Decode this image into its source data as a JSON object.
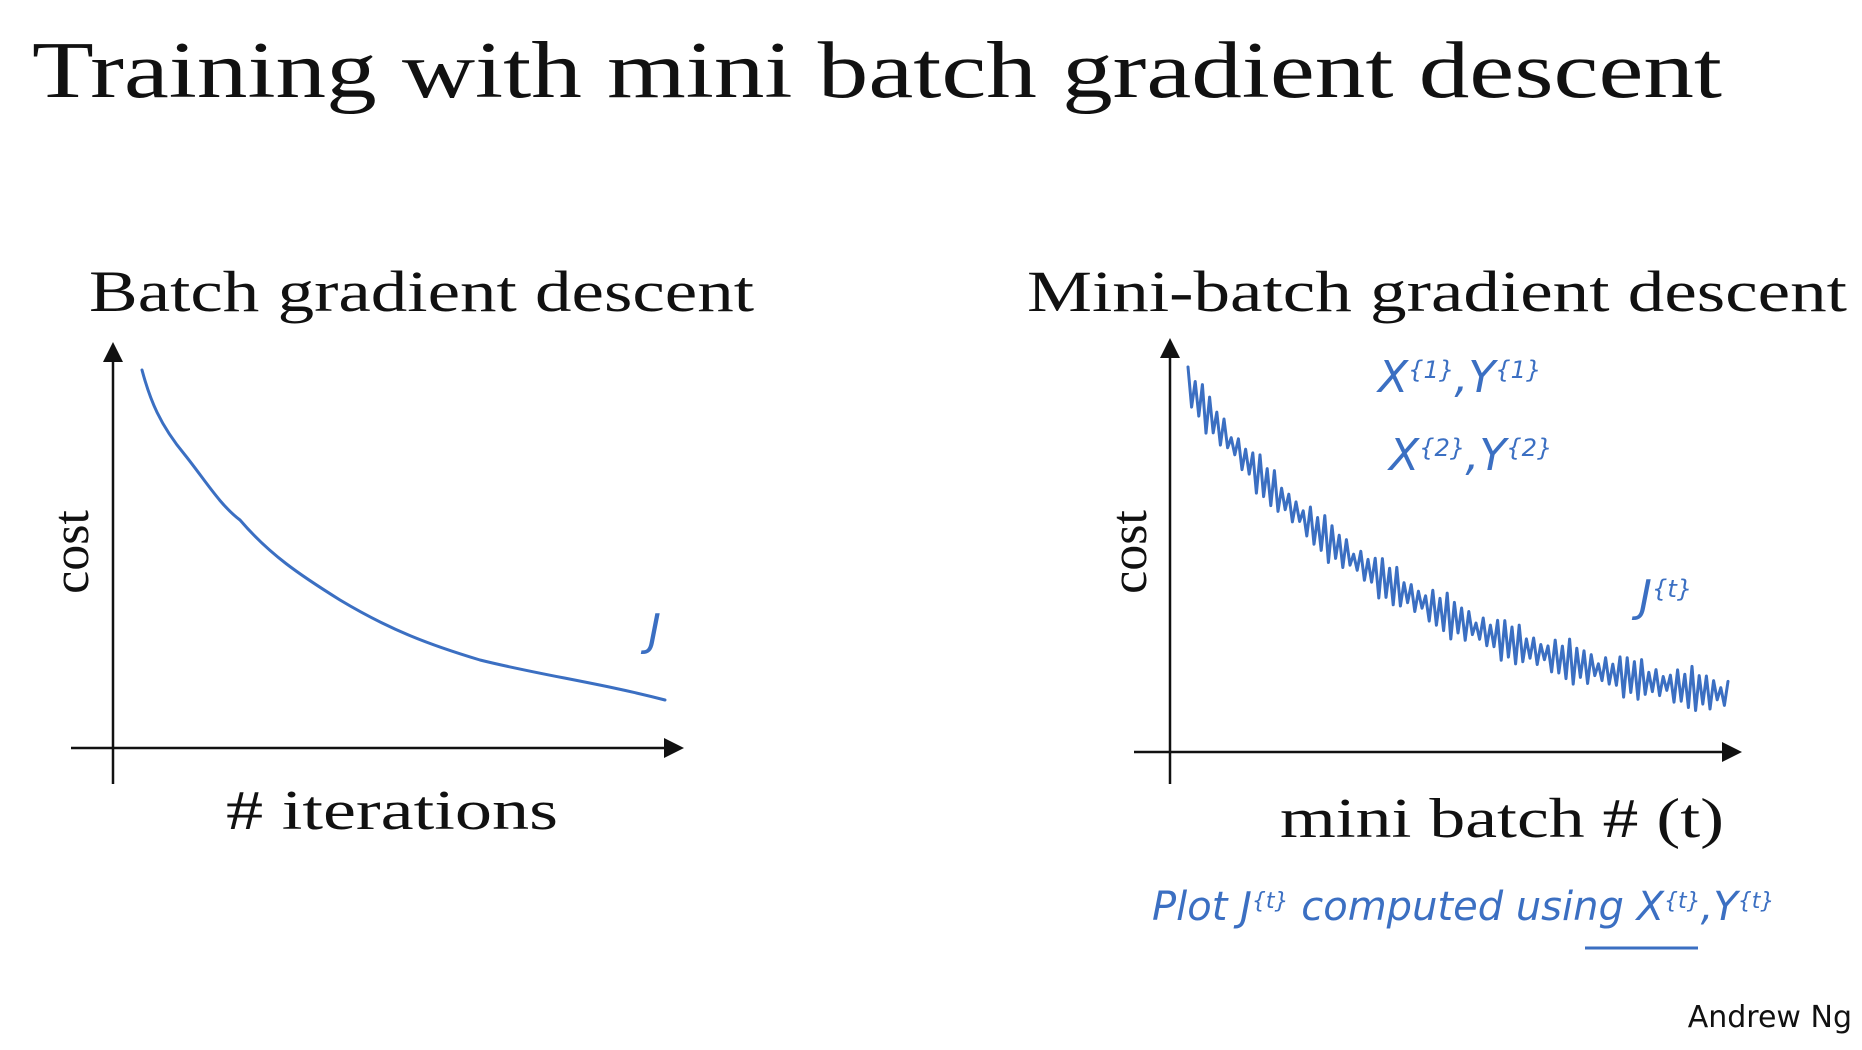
{
  "title": "Training with mini batch gradient descent",
  "left_chart": {
    "title": "Batch gradient descent",
    "y_label": "cost",
    "x_label": "# iterations",
    "annotations": [
      [
        {
          "text": "J"
        }
      ]
    ]
  },
  "right_chart": {
    "title": "Mini-batch gradient descent",
    "y_label": "cost",
    "x_label": "mini batch # (t)",
    "annotations": [
      [
        {
          "text": "X",
          "sup": "{1}"
        },
        {
          "text": ","
        },
        {
          "text": "Y",
          "sup": "{1}"
        }
      ],
      [
        {
          "text": "X",
          "sup": "{2}"
        },
        {
          "text": ","
        },
        {
          "text": "Y",
          "sup": "{2}"
        }
      ],
      [
        {
          "text": "J",
          "sup": "{t}"
        }
      ],
      [
        {
          "text": "Plot "
        },
        {
          "text": "J",
          "sup": "{t}"
        },
        {
          "text": " computed using "
        },
        {
          "text": "X",
          "sup": "{t}"
        },
        {
          "text": ","
        },
        {
          "text": "Y",
          "sup": "{t}"
        }
      ]
    ]
  },
  "footer": "Andrew Ng"
}
